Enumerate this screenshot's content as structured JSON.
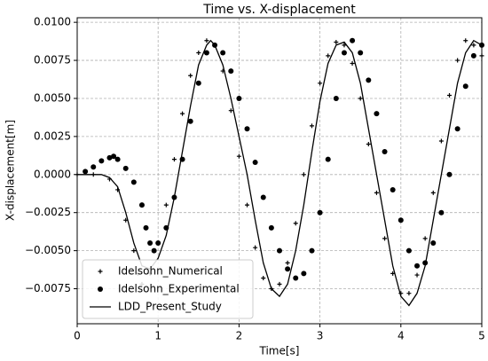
{
  "chart_data": {
    "type": "line",
    "title": "Time vs. X-displacement",
    "x_label": "Time[s]",
    "y_label": "X-displacement[m]",
    "xlim": [
      0,
      5
    ],
    "xticks": [
      0,
      1,
      2,
      3,
      4,
      5
    ],
    "ylim": [
      -0.0098,
      0.0103
    ],
    "yticks": [
      {
        "value": -0.0075,
        "label": "−0.0075"
      },
      {
        "value": -0.005,
        "label": "−0.0050"
      },
      {
        "value": -0.0025,
        "label": "−0.0025"
      },
      {
        "value": 0,
        "label": "0.0000"
      },
      {
        "value": 0.0025,
        "label": "0.0025"
      },
      {
        "value": 0.005,
        "label": "0.0050"
      },
      {
        "value": 0.0075,
        "label": "0.0075"
      },
      {
        "value": 0.01,
        "label": "0.0100"
      }
    ],
    "grid": true,
    "legend": "lower left",
    "series": [
      {
        "name": "Idelsohn_Numerical",
        "color": "#000000",
        "marker": "plus",
        "x": [
          0,
          0.2,
          0.4,
          0.5,
          0.6,
          0.7,
          0.75,
          0.8,
          0.9,
          1.0,
          1.1,
          1.2,
          1.3,
          1.4,
          1.5,
          1.6,
          1.7,
          1.8,
          1.9,
          2.0,
          2.1,
          2.2,
          2.3,
          2.4,
          2.5,
          2.6,
          2.7,
          2.8,
          2.9,
          3.0,
          3.1,
          3.2,
          3.3,
          3.4,
          3.5,
          3.6,
          3.7,
          3.8,
          3.9,
          4.0,
          4.1,
          4.2,
          4.3,
          4.4,
          4.5,
          4.6,
          4.7,
          4.8,
          4.9,
          5.0
        ],
        "values": [
          0,
          0,
          -0.0003,
          -0.001,
          -0.003,
          -0.005,
          -0.0065,
          -0.0072,
          -0.0065,
          -0.0045,
          -0.002,
          0.001,
          0.004,
          0.0065,
          0.008,
          0.0088,
          0.0085,
          0.0068,
          0.0042,
          0.0012,
          -0.002,
          -0.0048,
          -0.0068,
          -0.0075,
          -0.0072,
          -0.0058,
          -0.0032,
          0,
          0.0032,
          0.006,
          0.0078,
          0.0087,
          0.0085,
          0.0073,
          0.005,
          0.002,
          -0.0012,
          -0.0042,
          -0.0065,
          -0.0078,
          -0.0078,
          -0.0066,
          -0.0042,
          -0.0012,
          0.0022,
          0.0052,
          0.0075,
          0.0088,
          0.0085,
          0.0078
        ]
      },
      {
        "name": "Idelsohn_Experimental",
        "color": "#000000",
        "marker": "dot",
        "x": [
          0.1,
          0.2,
          0.3,
          0.4,
          0.45,
          0.5,
          0.6,
          0.7,
          0.8,
          0.85,
          0.9,
          0.95,
          1.0,
          1.1,
          1.2,
          1.3,
          1.4,
          1.5,
          1.6,
          1.7,
          1.8,
          1.9,
          2.0,
          2.1,
          2.2,
          2.3,
          2.4,
          2.5,
          2.6,
          2.7,
          2.8,
          2.9,
          3.0,
          3.1,
          3.2,
          3.3,
          3.4,
          3.5,
          3.6,
          3.7,
          3.8,
          3.9,
          4.0,
          4.1,
          4.2,
          4.3,
          4.4,
          4.5,
          4.6,
          4.7,
          4.8,
          4.9,
          5.0
        ],
        "values": [
          0.0002,
          0.0005,
          0.0009,
          0.0011,
          0.0012,
          0.001,
          0.0004,
          -0.0005,
          -0.002,
          -0.0035,
          -0.0045,
          -0.005,
          -0.0045,
          -0.0035,
          -0.0015,
          0.001,
          0.0035,
          0.006,
          0.008,
          0.0085,
          0.008,
          0.0068,
          0.005,
          0.003,
          0.0008,
          -0.0015,
          -0.0035,
          -0.005,
          -0.0062,
          -0.0068,
          -0.0065,
          -0.005,
          -0.0025,
          0.001,
          0.005,
          0.008,
          0.0088,
          0.008,
          0.0062,
          0.004,
          0.0015,
          -0.001,
          -0.003,
          -0.005,
          -0.006,
          -0.0058,
          -0.0045,
          -0.0025,
          0,
          0.003,
          0.0058,
          0.0078,
          0.0085
        ]
      },
      {
        "name": "LDD_Present_Study",
        "color": "#000000",
        "marker": "line",
        "x": [
          0,
          0.1,
          0.2,
          0.3,
          0.4,
          0.5,
          0.6,
          0.7,
          0.8,
          0.9,
          1.0,
          1.1,
          1.2,
          1.3,
          1.4,
          1.5,
          1.6,
          1.65,
          1.7,
          1.8,
          1.9,
          2.0,
          2.1,
          2.2,
          2.3,
          2.4,
          2.5,
          2.6,
          2.7,
          2.8,
          2.9,
          3.0,
          3.1,
          3.2,
          3.3,
          3.4,
          3.5,
          3.6,
          3.7,
          3.8,
          3.9,
          4.0,
          4.1,
          4.2,
          4.3,
          4.4,
          4.5,
          4.6,
          4.7,
          4.8,
          4.9,
          5.0
        ],
        "values": [
          0,
          0,
          0,
          0,
          -0.0002,
          -0.0008,
          -0.0025,
          -0.0045,
          -0.006,
          -0.0062,
          -0.0055,
          -0.004,
          -0.0015,
          0.0015,
          0.0045,
          0.0072,
          0.0085,
          0.0088,
          0.0085,
          0.0072,
          0.005,
          0.0025,
          0,
          -0.003,
          -0.0058,
          -0.0075,
          -0.008,
          -0.0072,
          -0.005,
          -0.002,
          0.0015,
          0.0048,
          0.0073,
          0.0085,
          0.0087,
          0.008,
          0.006,
          0.003,
          0,
          -0.003,
          -0.006,
          -0.008,
          -0.0086,
          -0.0078,
          -0.006,
          -0.003,
          0,
          0.003,
          0.006,
          0.008,
          0.0088,
          0.0085
        ]
      }
    ]
  }
}
